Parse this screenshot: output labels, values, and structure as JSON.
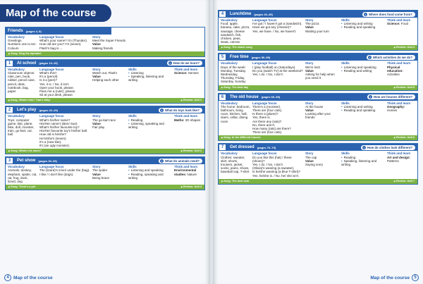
{
  "header": {
    "title": "Map of the course"
  },
  "column_headers": [
    "Vocabulary",
    "Language focus",
    "Story",
    "Skills",
    "Think and learn"
  ],
  "value_label": "Value",
  "units": [
    {
      "name": "Friends",
      "pages": "(pages 4–9)",
      "vocabulary": [
        "Greetings",
        "Numbers one to ten",
        "Colours"
      ],
      "language": [
        "What's your name? I'm (Thunder).",
        "How old are you? I'm (seven).",
        "Flash's bag is ..."
      ],
      "story": {
        "title": "Meet the Super Friends",
        "value": "Making friends"
      },
      "song": "Song: Sing the alphabet"
    },
    {
      "number": "1",
      "name": "At school",
      "pages": "(pages 10–19)",
      "question": "How do we learn?",
      "vocabulary": [
        "Classroom objects: ruler, pen, book, rubber, pencil case, pencil, desk, notebook, bag, paper"
      ],
      "language": [
        "What's this?",
        "It's a (pencil).",
        "Is it a (pen)?",
        "Yes, it is. / No, it isn't.",
        "Open your book, please.",
        "Pass me a (ruler), please.",
        "Sit at your desk, please."
      ],
      "story": {
        "title": "Watch out, Flash!",
        "value": "Helping each other"
      },
      "skills": [
        "Listening",
        "Speaking, listening and writing"
      ],
      "think": {
        "subject": "Science:",
        "topic": "Senses"
      },
      "song": "Song: What's this? That's Silly!",
      "review": "Review: Unit 1"
    },
    {
      "number": "2",
      "name": "Let's play",
      "pages": "(pages 20–29)",
      "question": "What do toys look like?",
      "vocabulary": [
        "Toys: computer game, kite, plane, bike, doll, monster, train, go-kart, car, ball"
      ],
      "language": [
        "What's his/her name?",
        "His/Her name's (Ben/ Sue).",
        "What's his/her favourite toy?",
        "His/Her favourite toy's his/her ball.",
        "How old is he/she?",
        "He's/She's (seven).",
        "It's a (new kite).",
        "It's (an ugly monster)."
      ],
      "story": {
        "title": "The go-kart race",
        "value": "Fair play"
      },
      "skills": [
        "Reading",
        "Listening, speaking and writing"
      ],
      "think": {
        "subject": "Maths:",
        "topic": "2D shapes"
      },
      "song": "Song: What's his name?",
      "review": "Review: Unit 2"
    },
    {
      "number": "3",
      "name": "Pet show",
      "pages": "(pages 30–39)",
      "question": "What do animals need?",
      "vocabulary": [
        "Animals: donkey, elephant, spider, cat, rat, frog, duck, lizard, dog"
      ],
      "language": [
        "The (lizard)'s in/on/ under the (bag).",
        "I like / I don't like (dogs)."
      ],
      "story": {
        "title": "The spider",
        "value": "Being brave"
      },
      "skills": [
        "Listening and speaking",
        "Reading, speaking and writing"
      ],
      "think": {
        "subject": "Environmental studies:",
        "topic": "Nature"
      },
      "song": "Song: There's a pet",
      "review": "Review: Unit 3"
    },
    {
      "number": "4",
      "name": "Lunchtime",
      "pages": "(pages 40–49)",
      "question": "Where does food come from?",
      "vocabulary": [
        "Food: apple, banana, cake, pizza, sausage, cheese sandwich, fish, chicken, peas, steak, carrots"
      ],
      "language": [
        "I've got / I haven't got a (sandwich).",
        "Have we got any (cheese)?",
        "Yes, we have. / No, we haven't."
      ],
      "story": {
        "title": "The pizza",
        "value": "Waiting your turn"
      },
      "skills": [
        "Listening and writing",
        "Reading and speaking"
      ],
      "think": {
        "subject": "Science:",
        "topic": "Food"
      },
      "song": "Song: The snack song",
      "review": "Review: Unit 4"
    },
    {
      "number": "5",
      "name": "Free time",
      "pages": "(pages 50–59)",
      "question": "Which activities do we do?",
      "vocabulary": [
        "Days of the week: Monday, Tuesday, Wednesday, Thursday, Friday, Saturday, Sunday"
      ],
      "language": [
        "I (play football) on (Saturdays).",
        "Do you (watch TV) at the weekend?",
        "Yes, I do. / No, I don't."
      ],
      "story": {
        "title": "We're lost!",
        "value": "Asking for help when you need it"
      },
      "skills": [
        "Listening and speaking",
        "Reading and writing"
      ],
      "think": {
        "subject": "Physical education:",
        "topic": "Activities"
      },
      "song": "Song: The best day",
      "review": "Review: Unit 5"
    },
    {
      "number": "6",
      "name": "The old house",
      "pages": "(pages 60–69)",
      "question": "How are houses different?",
      "vocabulary": [
        "The home: bedroom, bathroom, living room, kitchen, hall, stairs, cellar, dining room"
      ],
      "language": [
        "There's a (monster).",
        "There are (four cats).",
        "Is there a (plane)?",
        "Yes, there is.",
        "Are there any (rats)?",
        "No, there aren't.",
        "How many (rats) are there?",
        "There are (four cats)."
      ],
      "story": {
        "title": "At the house",
        "value": "Looking after your friends"
      },
      "skills": [
        "Listening and writing",
        "Reading and speaking"
      ],
      "think": {
        "subject": "Geography:",
        "topic": "Homes"
      },
      "song": "Song: In the different houses",
      "review": "Review: Unit 6"
    },
    {
      "number": "7",
      "name": "Get dressed",
      "pages": "(pages 70–79)",
      "question": "How do clothes look different?",
      "vocabulary": [
        "Clothes: sweater, skirt, shorts, trousers, jacket, socks, jeans, shoes, baseball cap, T-shirt"
      ],
      "language": [
        "Do you like this (hat) / these (shoes)?",
        "Yes, I do. / No, I don't.",
        "(Olivia)'s wearing (a sweater).",
        "Is he/she wearing (a blue T-shirt)?",
        "Yes, he/she is. / No, he/ she isn't."
      ],
      "story": {
        "title": "The cap",
        "value": "Saying sorry"
      },
      "skills": [
        "Reading",
        "Speaking, listening and writing"
      ],
      "think": {
        "subject": "Art and design:",
        "topic": "Patterns"
      },
      "song": "Song: The best look",
      "review": "Review: Unit 7"
    }
  ],
  "footer": {
    "left_number": "4",
    "left_text": "Map of the course",
    "right_text": "Map of the course",
    "right_number": "5"
  }
}
